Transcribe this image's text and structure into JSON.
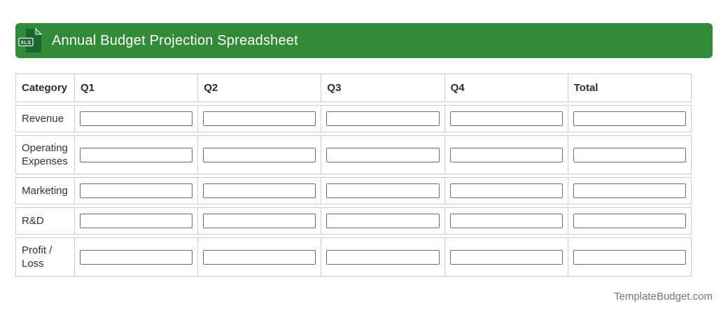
{
  "header": {
    "title": "Annual Budget Projection Spreadsheet",
    "file_icon_label": "XLS"
  },
  "colors": {
    "header_bar_green": "#318a37",
    "file_icon_green": "#17682e",
    "table_border_gray": "#cccccc",
    "input_border_gray": "#6e6e6e",
    "text_dark": "#333333",
    "footer_gray": "#757575"
  },
  "table": {
    "columns": [
      "Category",
      "Q1",
      "Q2",
      "Q3",
      "Q4",
      "Total"
    ],
    "rows": [
      {
        "category": "Revenue",
        "values": [
          "",
          "",
          "",
          "",
          ""
        ]
      },
      {
        "category": "Operating Expenses",
        "values": [
          "",
          "",
          "",
          "",
          ""
        ]
      },
      {
        "category": "Marketing",
        "values": [
          "",
          "",
          "",
          "",
          ""
        ]
      },
      {
        "category": "R&D",
        "values": [
          "",
          "",
          "",
          "",
          ""
        ]
      },
      {
        "category": "Profit / Loss",
        "values": [
          "",
          "",
          "",
          "",
          ""
        ]
      }
    ]
  },
  "footer": {
    "brand": "TemplateBudget.com"
  }
}
